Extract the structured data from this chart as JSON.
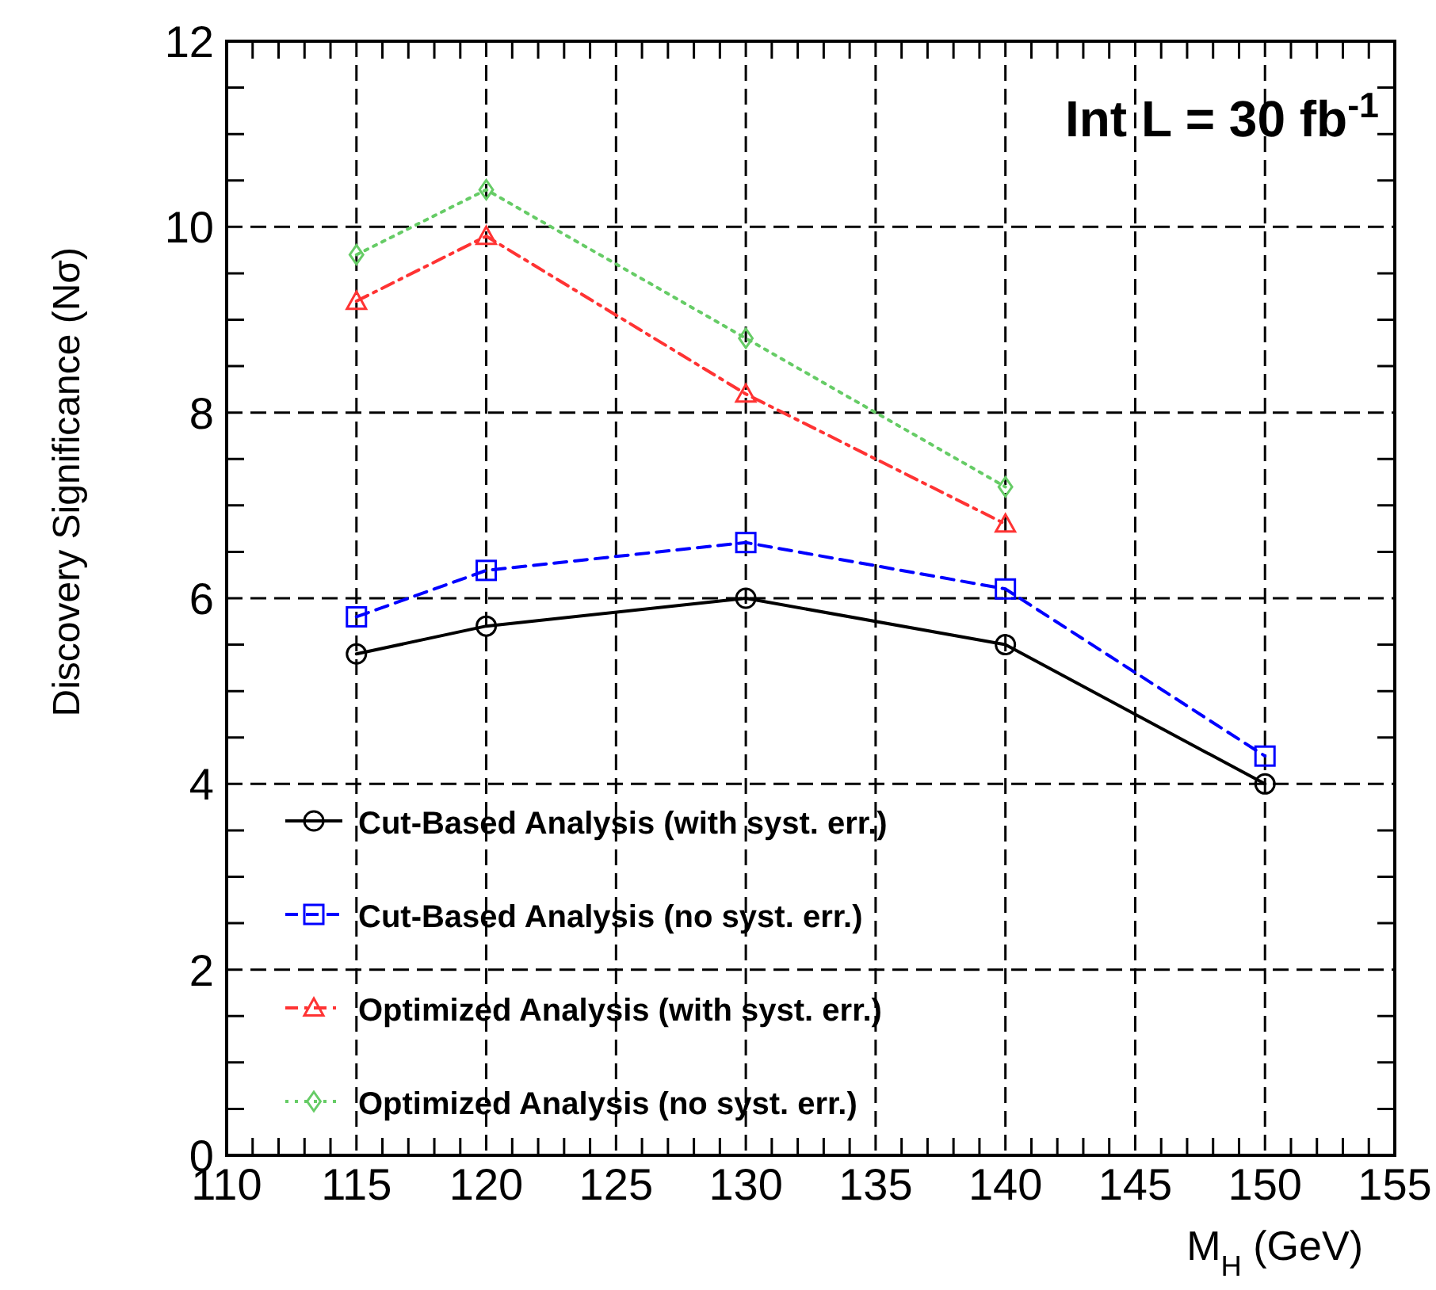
{
  "chart_data": {
    "type": "line",
    "xlabel": "M$_{H}$ (GeV)",
    "ylabel": "Discovery Significance (Nσ)",
    "annotations": [
      "Int L = 30 fb$^{-1}$"
    ],
    "x": [
      115,
      120,
      130,
      140,
      150
    ],
    "series": [
      {
        "name": "Cut-Based Analysis (with syst. err.)",
        "color": "#000000",
        "marker": "circle",
        "line_style": "solid",
        "values": [
          5.4,
          5.7,
          6.0,
          5.5,
          4.0
        ]
      },
      {
        "name": "Cut-Based Analysis (no syst. err.)",
        "color": "#0000ff",
        "marker": "square",
        "line_style": "dashed",
        "values": [
          5.8,
          6.3,
          6.6,
          6.1,
          4.3
        ]
      },
      {
        "name": "Optimized Analysis (with syst. err.)",
        "color": "#ff3333",
        "marker": "triangle",
        "line_style": "dashdot",
        "values": [
          9.2,
          9.9,
          8.2,
          6.8,
          null
        ]
      },
      {
        "name": "Optimized Analysis (no syst. err.)",
        "color": "#66cc66",
        "marker": "diamond",
        "line_style": "dotted",
        "values": [
          9.7,
          10.4,
          8.8,
          7.2,
          null
        ]
      }
    ],
    "xlim": [
      110,
      155
    ],
    "xticks": [
      110,
      115,
      120,
      125,
      130,
      135,
      140,
      145,
      150,
      155
    ],
    "ylim": [
      0,
      12
    ],
    "yticks": [
      0,
      2,
      4,
      6,
      8,
      10,
      12
    ],
    "grid": true,
    "legend": "bottom left"
  }
}
